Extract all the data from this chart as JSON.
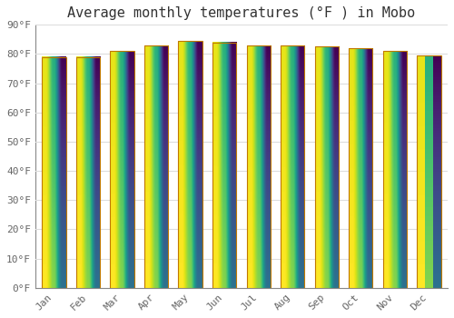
{
  "title": "Average monthly temperatures (°F ) in Mobo",
  "categories": [
    "Jan",
    "Feb",
    "Mar",
    "Apr",
    "May",
    "Jun",
    "Jul",
    "Aug",
    "Sep",
    "Oct",
    "Nov",
    "Dec"
  ],
  "values": [
    79.0,
    79.0,
    81.0,
    83.0,
    84.5,
    84.0,
    83.0,
    83.0,
    82.5,
    82.0,
    81.0,
    79.5
  ],
  "bar_color_top": "#F5A000",
  "bar_color_bottom": "#FFD060",
  "bar_edge_color": "#C07800",
  "background_color": "#FFFFFF",
  "grid_color": "#DDDDDD",
  "ylim": [
    0,
    90
  ],
  "yticks": [
    0,
    10,
    20,
    30,
    40,
    50,
    60,
    70,
    80,
    90
  ],
  "ytick_labels": [
    "0°F",
    "10°F",
    "20°F",
    "30°F",
    "40°F",
    "50°F",
    "60°F",
    "70°F",
    "80°F",
    "90°F"
  ],
  "title_fontsize": 11,
  "tick_fontsize": 8,
  "font_family": "monospace"
}
